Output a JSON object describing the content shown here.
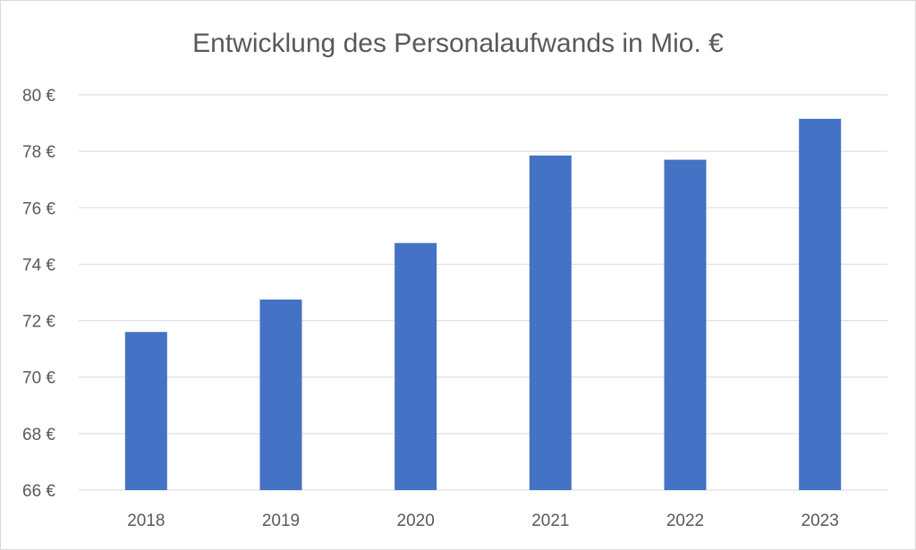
{
  "chart_data": {
    "type": "bar",
    "title": "Entwicklung des Personalaufwands in Mio. €",
    "xlabel": "",
    "ylabel": "",
    "categories": [
      "2018",
      "2019",
      "2020",
      "2021",
      "2022",
      "2023"
    ],
    "values": [
      71.6,
      72.75,
      74.75,
      77.85,
      77.7,
      79.15
    ],
    "ylim": [
      66,
      80
    ],
    "yticks": [
      66,
      68,
      70,
      72,
      74,
      76,
      78,
      80
    ],
    "ytick_labels": [
      "66 €",
      "68 €",
      "70 €",
      "72 €",
      "74 €",
      "76 €",
      "78 €",
      "80 €"
    ],
    "grid": true,
    "legend": "none",
    "bar_color": "#4472C4"
  }
}
